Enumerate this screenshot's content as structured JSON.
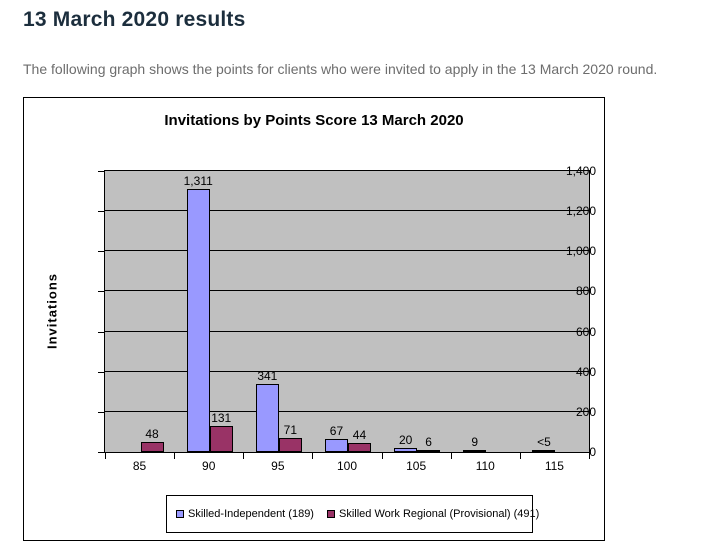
{
  "page": {
    "heading": "13 March 2020 results",
    "description": "The following graph shows the points for clients who were invited to apply in the 13 March 2020 round."
  },
  "colors": {
    "heading_text": "#1c2e3d",
    "body_text": "#6d6d6d",
    "plot_background": "#c0c0c0",
    "axis_and_grid": "#000000",
    "series1": "#9999ff",
    "series2": "#993366"
  },
  "chart_data": {
    "type": "bar",
    "title": "Invitations by Points Score 13 March 2020",
    "xlabel": "",
    "ylabel": "Invitations",
    "ylim": [
      0,
      1400
    ],
    "ytick_step": 200,
    "ytick_labels": [
      "0",
      "200",
      "400",
      "600",
      "800",
      "1,000",
      "1,200",
      "1,400"
    ],
    "grid": true,
    "legend_position": "bottom",
    "categories": [
      "85",
      "90",
      "95",
      "100",
      "105",
      "110",
      "115"
    ],
    "series": [
      {
        "name": "Skilled-Independent (189)",
        "color": "#9999ff",
        "values": [
          0,
          1311,
          341,
          67,
          20,
          9,
          3
        ],
        "labels": [
          "",
          "1,311",
          "341",
          "67",
          "20",
          "9",
          "<5"
        ]
      },
      {
        "name": "Skilled Work Regional (Provisional) (491)",
        "color": "#993366",
        "values": [
          48,
          131,
          71,
          44,
          6,
          0,
          0
        ],
        "labels": [
          "48",
          "131",
          "71",
          "44",
          "6",
          "",
          ""
        ]
      }
    ]
  }
}
